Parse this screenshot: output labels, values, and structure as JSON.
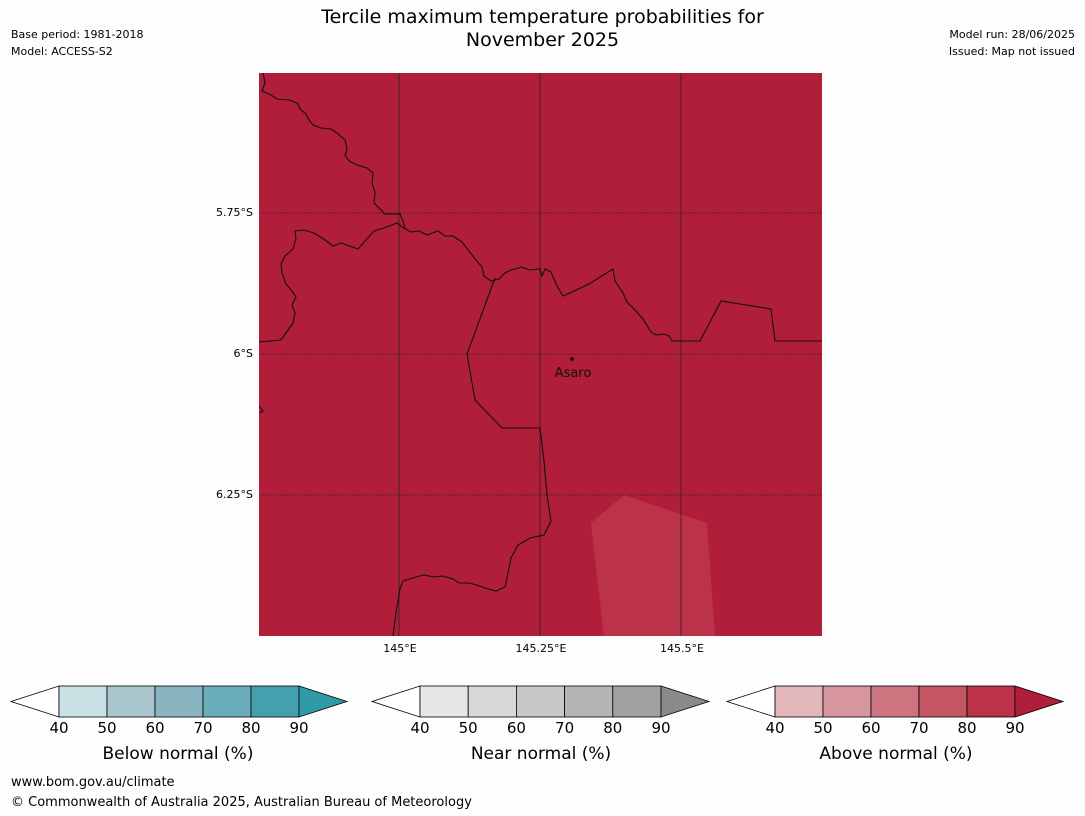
{
  "title_line1": "Tercile maximum temperature probabilities for",
  "title_line2": "November 2025",
  "meta_left": {
    "base_period": "Base period: 1981-2018",
    "model": "Model: ACCESS-S2"
  },
  "meta_right": {
    "model_run": "Model run: 28/06/2025",
    "issued": "Issued: Map not issued"
  },
  "map": {
    "fill_color": "#b01e39",
    "light_patch_color": "#bc3349",
    "place_label": "Asaro",
    "lat_labels": [
      "5.75°S",
      "6°S",
      "6.25°S"
    ],
    "lon_labels": [
      "145°E",
      "145.25°E",
      "145.5°E"
    ]
  },
  "colorbars": [
    {
      "title": "Below normal (%)",
      "ticks": [
        "40",
        "50",
        "60",
        "70",
        "80",
        "90"
      ],
      "colors": [
        "#ffffff",
        "#c9e0e4",
        "#a8c6cc",
        "#8ab4c0",
        "#6badbb",
        "#45a0ae",
        "#2e9aa8"
      ]
    },
    {
      "title": "Near normal (%)",
      "ticks": [
        "40",
        "50",
        "60",
        "70",
        "80",
        "90"
      ],
      "colors": [
        "#ffffff",
        "#e7e7e7",
        "#d8d8d8",
        "#c8c8c8",
        "#b4b4b4",
        "#a0a0a0",
        "#8a8a8a"
      ]
    },
    {
      "title": "Above normal (%)",
      "ticks": [
        "40",
        "50",
        "60",
        "70",
        "80",
        "90"
      ],
      "colors": [
        "#ffffff",
        "#e2b7bc",
        "#d7959d",
        "#cc7580",
        "#c45563",
        "#bc3349",
        "#b01e39"
      ]
    }
  ],
  "footer": {
    "url": "www.bom.gov.au/climate",
    "copyright": "© Commonwealth of Australia 2025, Australian Bureau of Meteorology"
  }
}
